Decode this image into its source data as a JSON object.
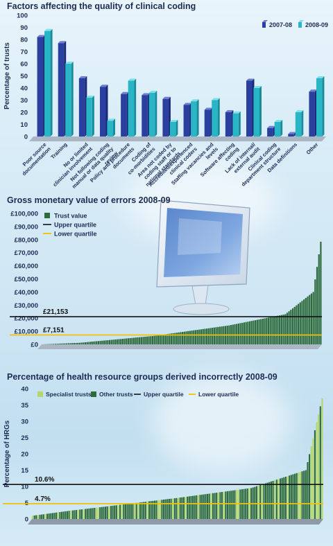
{
  "panel1": {
    "title": "Factors affecting the quality of clinical coding",
    "chart_data": {
      "type": "bar",
      "title": "Factors affecting the quality of clinical coding",
      "ylabel": "Percentage of trusts",
      "ylim": [
        0,
        100
      ],
      "yticks": [
        0,
        10,
        20,
        30,
        40,
        50,
        60,
        70,
        80,
        90,
        100
      ],
      "legend_position": "top-right",
      "categories": [
        "Poor source documentation",
        "Training",
        "No or limited clinician involvement",
        "Not following coding manual or data quality review",
        "Policy and procedure documents",
        "Coding of co-morbidities",
        "Area not coded by coding staff or to national standards",
        "Accredited/experienced clinical coders",
        "Staffing vacancies and levels",
        "Software affecting coding",
        "Lack of internal/ external audit",
        "Clinical coding department structure",
        "Data definitions",
        "Other"
      ],
      "series": [
        {
          "name": "2007-08",
          "color": "#2b3f9e",
          "values": [
            82,
            77,
            48,
            41,
            35,
            34,
            31,
            26,
            22,
            20,
            46,
            7,
            2,
            37
          ]
        },
        {
          "name": "2008-09",
          "color": "#28b6c6",
          "values": [
            87,
            60,
            32,
            13,
            46,
            36,
            12,
            29,
            30,
            19,
            40,
            12,
            20,
            48
          ]
        }
      ]
    }
  },
  "panel2": {
    "title": "Gross monetary value of errors 2008-09",
    "chart_data": {
      "type": "bar",
      "title": "Gross monetary value of errors 2008-09",
      "ylim": [
        0,
        100000
      ],
      "yticks": [
        "£0",
        "£10,000",
        "£20,000",
        "£30,000",
        "£40,000",
        "£50,000",
        "£60,000",
        "£70,000",
        "£80,000",
        "£90,000",
        "£100,000"
      ],
      "legend": [
        "Trust value",
        "Upper quartile",
        "Lower quartile"
      ],
      "legend_position": "top-left",
      "colors": {
        "trust": "#2e6b3c",
        "upper": "#111111",
        "lower": "#f2c200"
      },
      "upper_quartile": 21153,
      "lower_quartile": 7151,
      "upper_label": "£21,153",
      "lower_label": "£7,151",
      "n_trusts": 150,
      "values_description_points": [
        [
          0,
          0
        ],
        [
          20,
          1200
        ],
        [
          60,
          6500
        ],
        [
          100,
          14500
        ],
        [
          130,
          23000
        ],
        [
          145,
          40000
        ],
        [
          150,
          88000
        ]
      ]
    }
  },
  "panel3": {
    "title": "Percentage of health resource groups derived incorrectly 2008-09",
    "chart_data": {
      "type": "bar",
      "title": "Percentage of health resource groups derived incorrectly 2008-09",
      "ylabel": "Percentage of HRGs",
      "ylim": [
        0,
        40
      ],
      "yticks": [
        0,
        5,
        10,
        15,
        20,
        25,
        30,
        35,
        40
      ],
      "legend": [
        "Specialist trusts",
        "Other trusts",
        "Upper quartile",
        "Lower quartile"
      ],
      "legend_position": "top",
      "colors": {
        "specialist": "#b5d66b",
        "other": "#2e6b3c",
        "upper": "#111111",
        "lower": "#f2c200"
      },
      "upper_quartile": 10.6,
      "lower_quartile": 4.7,
      "upper_label": "10.6%",
      "lower_label": "4.7%",
      "n_trusts": 160,
      "values_description_points": [
        [
          0,
          1
        ],
        [
          20,
          2.5
        ],
        [
          40,
          3.8
        ],
        [
          80,
          6.5
        ],
        [
          120,
          9.5
        ],
        [
          150,
          15
        ],
        [
          160,
          39.5
        ]
      ]
    }
  }
}
